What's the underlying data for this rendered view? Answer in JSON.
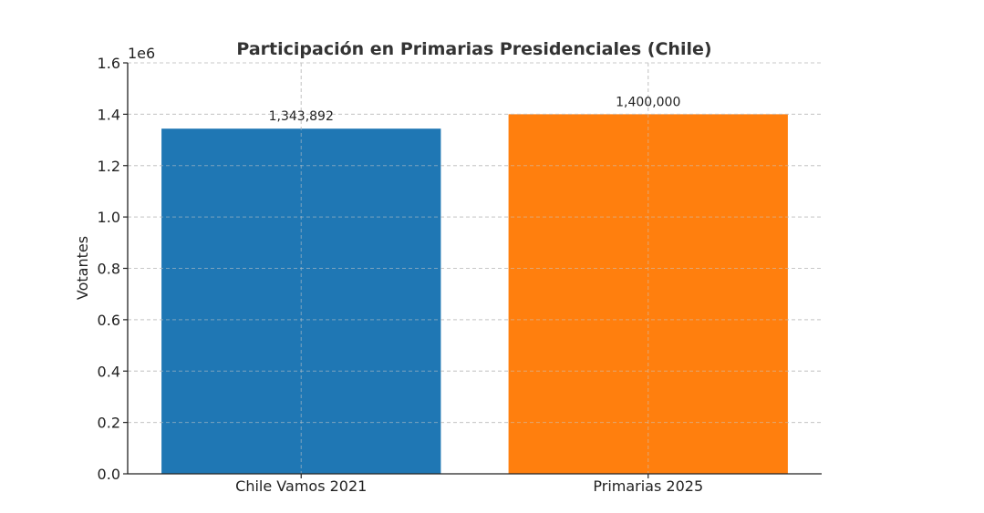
{
  "chart_data": {
    "type": "bar",
    "title": "Participación en Primarias Presidenciales (Chile)",
    "xlabel": "",
    "ylabel": "Votantes",
    "axis_multiplier": "1e6",
    "categories": [
      "Chile Vamos 2021",
      "Primarias 2025"
    ],
    "values": [
      1343892,
      1400000
    ],
    "value_labels": [
      "1,343,892",
      "1,400,000"
    ],
    "colors": [
      "#1f77b4",
      "#ff7f0e"
    ],
    "ylim": [
      0,
      1.6
    ],
    "yticks": [
      0.0,
      0.2,
      0.4,
      0.6,
      0.8,
      1.0,
      1.2,
      1.4,
      1.6
    ],
    "ytick_labels": [
      "0.0",
      "0.2",
      "0.4",
      "0.6",
      "0.8",
      "1.0",
      "1.2",
      "1.4",
      "1.6"
    ],
    "grid": true,
    "legend": "none"
  }
}
